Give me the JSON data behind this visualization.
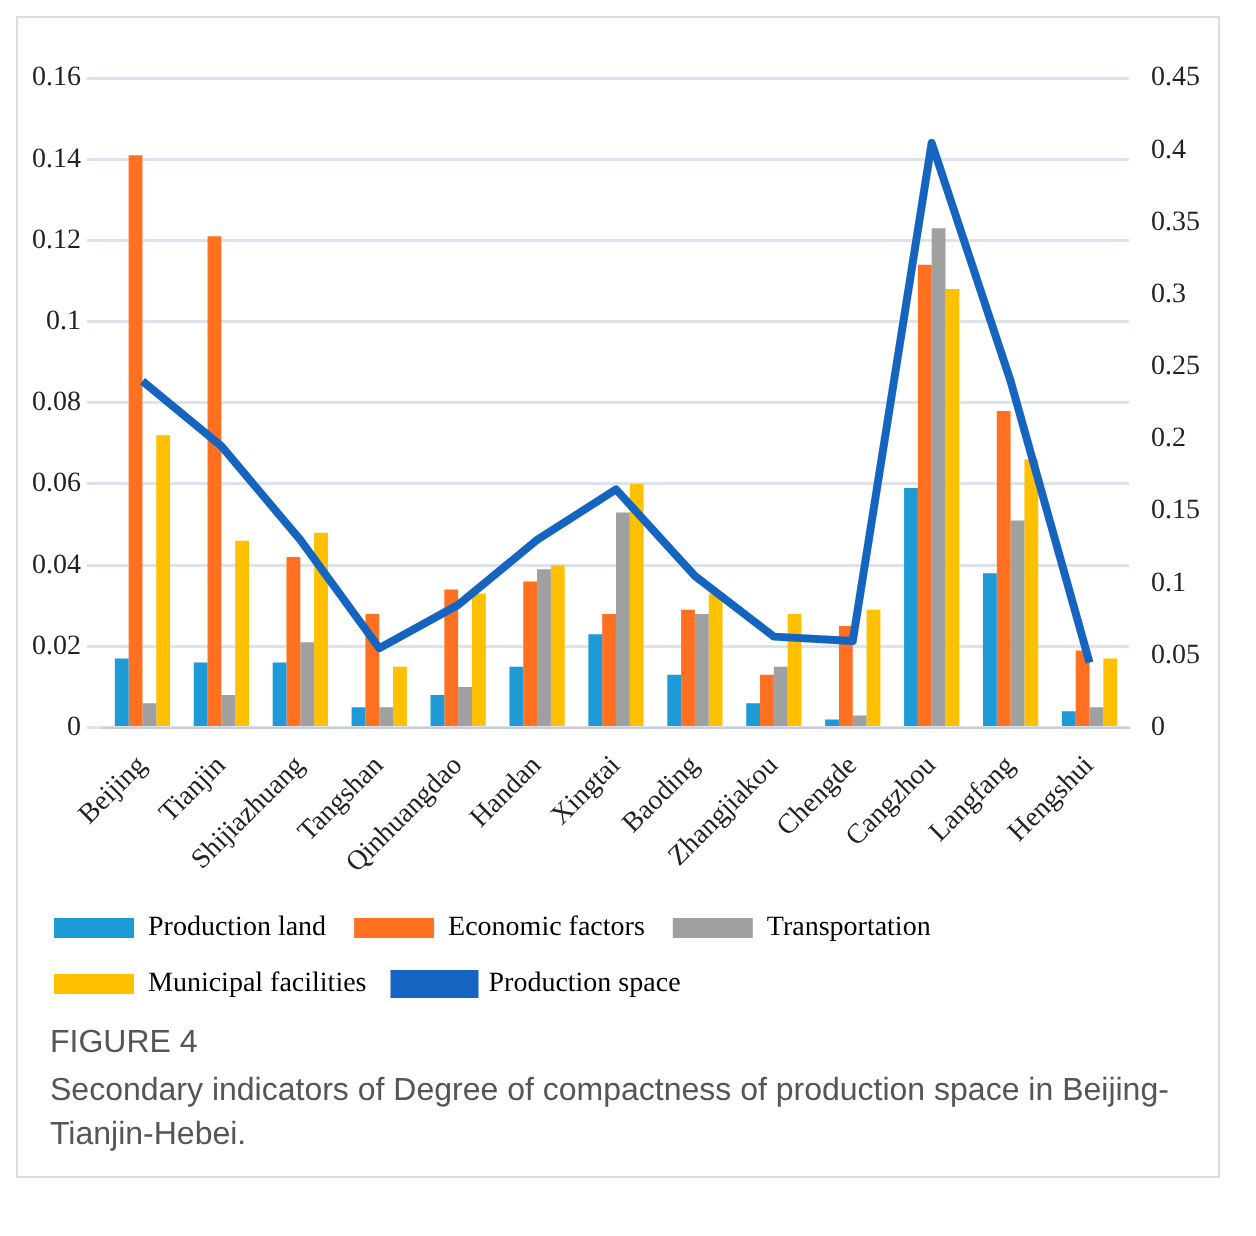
{
  "chart_data": {
    "type": "bar",
    "categories": [
      "Beijing",
      "Tianjin",
      "Shijiazhuang",
      "Tangshan",
      "Qinhuangdao",
      "Handan",
      "Xingtai",
      "Baoding",
      "Zhangjiakou",
      "Chengde",
      "Cangzhou",
      "Langfang",
      "Hengshui"
    ],
    "series": [
      {
        "name": "Production land",
        "color": "#1e9bd7",
        "values": [
          0.017,
          0.016,
          0.016,
          0.005,
          0.008,
          0.015,
          0.023,
          0.013,
          0.006,
          0.002,
          0.059,
          0.038,
          0.004
        ]
      },
      {
        "name": "Economic factors",
        "color": "#ff7020",
        "values": [
          0.141,
          0.121,
          0.042,
          0.028,
          0.034,
          0.036,
          0.028,
          0.029,
          0.013,
          0.025,
          0.114,
          0.078,
          0.019
        ]
      },
      {
        "name": "Transportation",
        "color": "#a0a0a0",
        "values": [
          0.006,
          0.008,
          0.021,
          0.005,
          0.01,
          0.039,
          0.053,
          0.028,
          0.015,
          0.003,
          0.123,
          0.051,
          0.005
        ]
      },
      {
        "name": "Municipal facilities",
        "color": "#ffc000",
        "values": [
          0.072,
          0.046,
          0.048,
          0.015,
          0.033,
          0.04,
          0.06,
          0.033,
          0.028,
          0.029,
          0.108,
          0.066,
          0.017
        ]
      },
      {
        "name": "Production space",
        "type": "line",
        "axis": "y2",
        "color": "#1565c0",
        "values": [
          0.24,
          0.195,
          0.13,
          0.055,
          0.085,
          0.13,
          0.165,
          0.105,
          0.063,
          0.06,
          0.405,
          0.24,
          0.045
        ]
      }
    ],
    "ylim": [
      0,
      0.16
    ],
    "yticks": [
      0,
      0.02,
      0.04,
      0.06,
      0.08,
      0.1,
      0.12,
      0.14,
      0.16
    ],
    "y2lim": [
      0,
      0.45
    ],
    "y2ticks": [
      0,
      0.05,
      0.1,
      0.15,
      0.2,
      0.25,
      0.3,
      0.35,
      0.4,
      0.45
    ],
    "grid": "y",
    "legend": "bottom",
    "marker": "none",
    "annotations": [
      "FIGURE 4",
      "Secondary indicators of Degree of compactness of production space in Beijing-Tianjin-Hebei."
    ]
  }
}
